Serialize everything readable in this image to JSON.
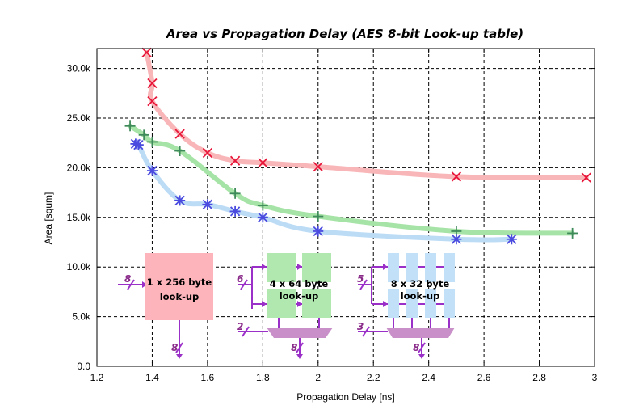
{
  "chart_data": {
    "type": "line",
    "title": "Area vs Propagation Delay (AES 8-bit Look-up table)",
    "xlabel": "Propagation Delay [ns]",
    "ylabel": "Area [squm]",
    "xlim": [
      1.2,
      3.0
    ],
    "ylim": [
      0,
      32000
    ],
    "x_ticks": [
      1.2,
      1.4,
      1.6,
      1.8,
      2.0,
      2.2,
      2.4,
      2.6,
      2.8,
      3.0
    ],
    "x_tick_labels": [
      "1.2",
      "1.4",
      "1.6",
      "1.8",
      "2",
      "2.2",
      "2.4",
      "2.6",
      "2.8",
      "3"
    ],
    "y_ticks": [
      0,
      5000,
      10000,
      15000,
      20000,
      25000,
      30000
    ],
    "y_tick_labels": [
      "0.0",
      "5.0k",
      "10.0k",
      "15.0k",
      "20.0k",
      "25.0k",
      "30.0k"
    ],
    "grid": true,
    "series": [
      {
        "marker": "x",
        "color": "#e8173a",
        "line_color": "#f9b6b9",
        "points": [
          [
            1.38,
            31600
          ],
          [
            1.4,
            28500
          ],
          [
            1.4,
            26700
          ],
          [
            1.5,
            23400
          ],
          [
            1.6,
            21500
          ],
          [
            1.7,
            20700
          ],
          [
            1.8,
            20500
          ],
          [
            2.0,
            20100
          ],
          [
            2.5,
            19100
          ],
          [
            2.97,
            19000
          ]
        ]
      },
      {
        "marker": "+",
        "color": "#3f8a5a",
        "line_color": "#a6e3a6",
        "points": [
          [
            1.32,
            24200
          ],
          [
            1.37,
            23300
          ],
          [
            1.4,
            22600
          ],
          [
            1.5,
            21700
          ],
          [
            1.7,
            17400
          ],
          [
            1.8,
            16200
          ],
          [
            2.0,
            15100
          ],
          [
            2.5,
            13600
          ],
          [
            2.92,
            13400
          ]
        ]
      },
      {
        "marker": "*",
        "color": "#4b4bdf",
        "line_color": "#bcdcf6",
        "points": [
          [
            1.34,
            22400
          ],
          [
            1.35,
            22300
          ],
          [
            1.4,
            19700
          ],
          [
            1.5,
            16700
          ],
          [
            1.6,
            16300
          ],
          [
            1.7,
            15600
          ],
          [
            1.8,
            15000
          ],
          [
            2.0,
            13600
          ],
          [
            2.5,
            12800
          ],
          [
            2.7,
            12800
          ]
        ]
      }
    ]
  },
  "inset": {
    "block1": {
      "line1": "1 x 256 byte",
      "line2": "look-up",
      "in_bits": "8",
      "out_bits": "8",
      "color": "#fdb5bb"
    },
    "block2": {
      "line1": "4 x  64 byte",
      "line2": "look-up",
      "in_bits": "6",
      "sel_bits": "2",
      "out_bits": "8",
      "color": "#b0e8b0"
    },
    "block3": {
      "line1": "8 x  32 byte",
      "line2": "look-up",
      "in_bits": "5",
      "sel_bits": "3",
      "out_bits": "8",
      "color": "#c2e0f8"
    },
    "mux_color": "#c88fc8",
    "wire_color": "#9b30c8"
  }
}
